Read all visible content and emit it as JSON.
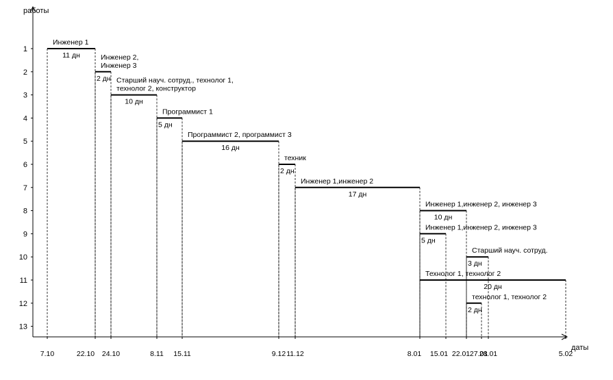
{
  "chart_data": {
    "type": "gantt",
    "ylabel": "работы",
    "xlabel": "даты",
    "y_ticks": [
      "1",
      "2",
      "3",
      "4",
      "5",
      "6",
      "7",
      "8",
      "9",
      "10",
      "11",
      "12",
      "13"
    ],
    "x_ticks": [
      "7.10",
      "22.10",
      "24.10",
      "8.11",
      "15.11",
      "9.12",
      "11.12",
      "8.01",
      "15.01",
      "22.01",
      "27.01",
      "28.01",
      "5.02"
    ],
    "tasks": [
      {
        "row": 1,
        "start": "7.10",
        "end": "22.10",
        "resources": [
          "Инженер 1"
        ],
        "duration": "11 дн"
      },
      {
        "row": 2,
        "start": "22.10",
        "end": "24.10",
        "resources": [
          "Инженер 2,",
          "Инженер 3"
        ],
        "duration": "2 дн"
      },
      {
        "row": 3,
        "start": "24.10",
        "end": "8.11",
        "resources": [
          "Старший науч. сотруд., технолог 1,",
          "технолог 2, конструктор"
        ],
        "duration": "10 дн"
      },
      {
        "row": 4,
        "start": "8.11",
        "end": "15.11",
        "resources": [
          "Программист 1"
        ],
        "duration": "5 дн"
      },
      {
        "row": 5,
        "start": "15.11",
        "end": "9.12",
        "resources": [
          "Программист 2, программист 3"
        ],
        "duration": "16 дн"
      },
      {
        "row": 6,
        "start": "9.12",
        "end": "11.12",
        "resources": [
          "техник"
        ],
        "duration": "2 дн"
      },
      {
        "row": 7,
        "start": "11.12",
        "end": "8.01",
        "resources": [
          "Инженер 1,инженер 2"
        ],
        "duration": "17 дн"
      },
      {
        "row": 8,
        "start": "8.01",
        "end": "22.01",
        "resources": [
          "Инженер 1,инженер 2, инженер 3"
        ],
        "duration": "10 дн"
      },
      {
        "row": 9,
        "start": "8.01",
        "end": "15.01",
        "resources": [
          "Инженер 1,инженер 2, инженер 3"
        ],
        "duration": "5 дн"
      },
      {
        "row": 10,
        "start": "22.01",
        "end": "28.01",
        "resources": [
          "Старший науч. сотруд."
        ],
        "duration": "3 дн"
      },
      {
        "row": 11,
        "start": "8.01",
        "end": "5.02",
        "resources": [
          "Технолог 1, технолог 2"
        ],
        "duration": "20 дн"
      },
      {
        "row": 12,
        "start": "22.01",
        "end": "27.01",
        "resources": [
          "технолог 1, технолог 2"
        ],
        "duration": "2 дн"
      }
    ],
    "grid": false,
    "dashed_guides": true
  }
}
